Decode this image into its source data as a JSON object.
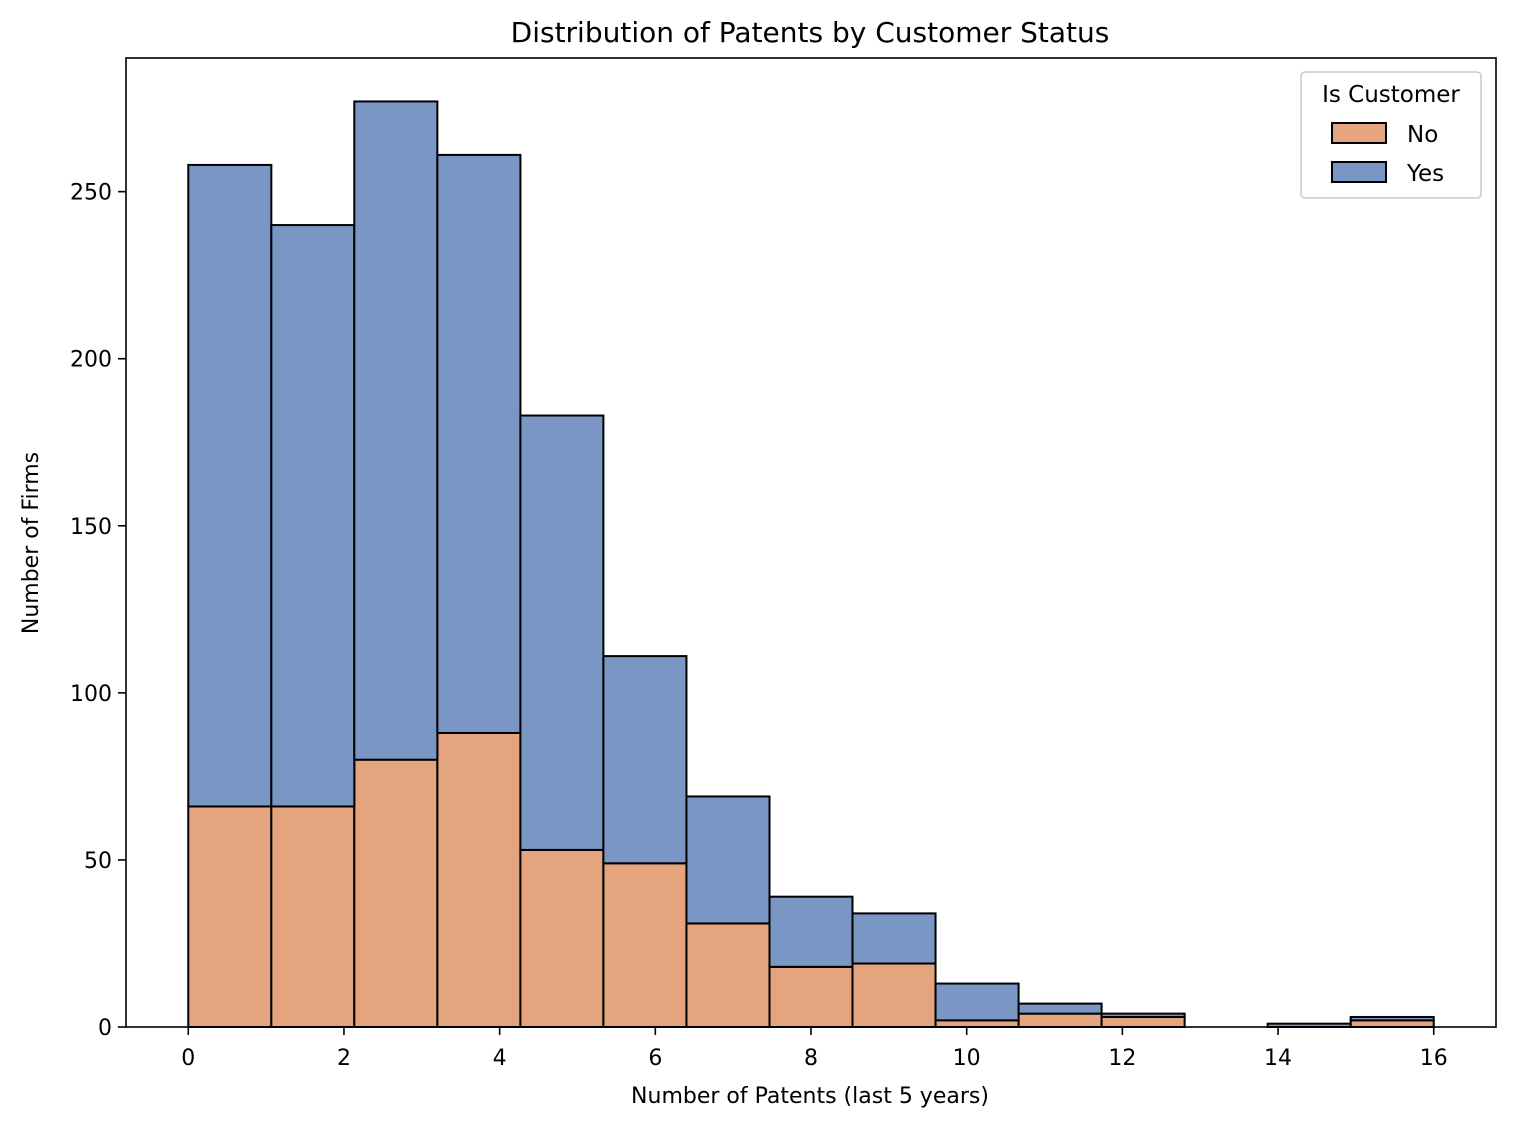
{
  "chart_data": {
    "type": "bar",
    "title": "Distribution of Patents by Customer Status",
    "xlabel": "Number of Patents (last 5 years)",
    "ylabel": "Number of Firms",
    "xlim": [
      -0.8,
      16.8
    ],
    "ylim": [
      0,
      290
    ],
    "xticks": [
      0,
      2,
      4,
      6,
      8,
      10,
      12,
      14,
      16
    ],
    "yticks": [
      0,
      50,
      100,
      150,
      200,
      250
    ],
    "grid": false,
    "stacked": true,
    "bin_edges": [
      0,
      1.067,
      2.133,
      3.2,
      4.267,
      5.333,
      6.4,
      7.467,
      8.533,
      9.6,
      10.667,
      11.733,
      12.8,
      13.867,
      14.933,
      16
    ],
    "series": [
      {
        "name": "No",
        "color": "#e3a47e",
        "values": [
          66,
          66,
          80,
          88,
          53,
          49,
          31,
          18,
          19,
          2,
          4,
          3,
          0,
          0,
          2
        ]
      },
      {
        "name": "Yes",
        "color": "#7a96c4",
        "values": [
          192,
          174,
          197,
          173,
          130,
          62,
          38,
          21,
          15,
          11,
          3,
          1,
          0,
          1,
          1
        ]
      }
    ],
    "legend": {
      "title": "Is Customer",
      "position": "top-right"
    }
  }
}
